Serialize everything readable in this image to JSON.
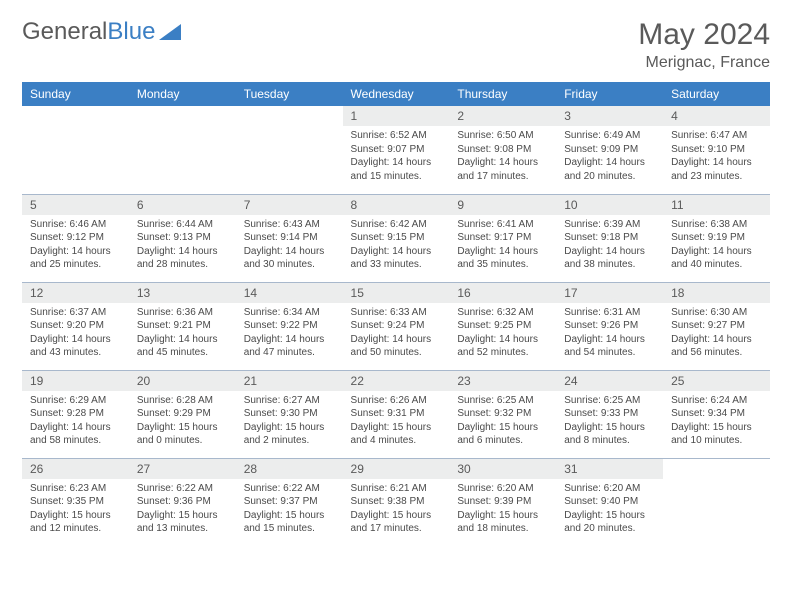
{
  "brand": {
    "part1": "General",
    "part2": "Blue"
  },
  "title": "May 2024",
  "location": "Merignac, France",
  "colors": {
    "header_bg": "#3b7fc4",
    "header_text": "#ffffff",
    "daynum_bg": "#eceded",
    "text": "#5a5a5a",
    "border": "#a8b8cc"
  },
  "weekdays": [
    "Sunday",
    "Monday",
    "Tuesday",
    "Wednesday",
    "Thursday",
    "Friday",
    "Saturday"
  ],
  "layout": {
    "first_weekday_index": 3,
    "days_in_month": 31
  },
  "days": {
    "1": {
      "sunrise": "6:52 AM",
      "sunset": "9:07 PM",
      "daylight": "14 hours and 15 minutes."
    },
    "2": {
      "sunrise": "6:50 AM",
      "sunset": "9:08 PM",
      "daylight": "14 hours and 17 minutes."
    },
    "3": {
      "sunrise": "6:49 AM",
      "sunset": "9:09 PM",
      "daylight": "14 hours and 20 minutes."
    },
    "4": {
      "sunrise": "6:47 AM",
      "sunset": "9:10 PM",
      "daylight": "14 hours and 23 minutes."
    },
    "5": {
      "sunrise": "6:46 AM",
      "sunset": "9:12 PM",
      "daylight": "14 hours and 25 minutes."
    },
    "6": {
      "sunrise": "6:44 AM",
      "sunset": "9:13 PM",
      "daylight": "14 hours and 28 minutes."
    },
    "7": {
      "sunrise": "6:43 AM",
      "sunset": "9:14 PM",
      "daylight": "14 hours and 30 minutes."
    },
    "8": {
      "sunrise": "6:42 AM",
      "sunset": "9:15 PM",
      "daylight": "14 hours and 33 minutes."
    },
    "9": {
      "sunrise": "6:41 AM",
      "sunset": "9:17 PM",
      "daylight": "14 hours and 35 minutes."
    },
    "10": {
      "sunrise": "6:39 AM",
      "sunset": "9:18 PM",
      "daylight": "14 hours and 38 minutes."
    },
    "11": {
      "sunrise": "6:38 AM",
      "sunset": "9:19 PM",
      "daylight": "14 hours and 40 minutes."
    },
    "12": {
      "sunrise": "6:37 AM",
      "sunset": "9:20 PM",
      "daylight": "14 hours and 43 minutes."
    },
    "13": {
      "sunrise": "6:36 AM",
      "sunset": "9:21 PM",
      "daylight": "14 hours and 45 minutes."
    },
    "14": {
      "sunrise": "6:34 AM",
      "sunset": "9:22 PM",
      "daylight": "14 hours and 47 minutes."
    },
    "15": {
      "sunrise": "6:33 AM",
      "sunset": "9:24 PM",
      "daylight": "14 hours and 50 minutes."
    },
    "16": {
      "sunrise": "6:32 AM",
      "sunset": "9:25 PM",
      "daylight": "14 hours and 52 minutes."
    },
    "17": {
      "sunrise": "6:31 AM",
      "sunset": "9:26 PM",
      "daylight": "14 hours and 54 minutes."
    },
    "18": {
      "sunrise": "6:30 AM",
      "sunset": "9:27 PM",
      "daylight": "14 hours and 56 minutes."
    },
    "19": {
      "sunrise": "6:29 AM",
      "sunset": "9:28 PM",
      "daylight": "14 hours and 58 minutes."
    },
    "20": {
      "sunrise": "6:28 AM",
      "sunset": "9:29 PM",
      "daylight": "15 hours and 0 minutes."
    },
    "21": {
      "sunrise": "6:27 AM",
      "sunset": "9:30 PM",
      "daylight": "15 hours and 2 minutes."
    },
    "22": {
      "sunrise": "6:26 AM",
      "sunset": "9:31 PM",
      "daylight": "15 hours and 4 minutes."
    },
    "23": {
      "sunrise": "6:25 AM",
      "sunset": "9:32 PM",
      "daylight": "15 hours and 6 minutes."
    },
    "24": {
      "sunrise": "6:25 AM",
      "sunset": "9:33 PM",
      "daylight": "15 hours and 8 minutes."
    },
    "25": {
      "sunrise": "6:24 AM",
      "sunset": "9:34 PM",
      "daylight": "15 hours and 10 minutes."
    },
    "26": {
      "sunrise": "6:23 AM",
      "sunset": "9:35 PM",
      "daylight": "15 hours and 12 minutes."
    },
    "27": {
      "sunrise": "6:22 AM",
      "sunset": "9:36 PM",
      "daylight": "15 hours and 13 minutes."
    },
    "28": {
      "sunrise": "6:22 AM",
      "sunset": "9:37 PM",
      "daylight": "15 hours and 15 minutes."
    },
    "29": {
      "sunrise": "6:21 AM",
      "sunset": "9:38 PM",
      "daylight": "15 hours and 17 minutes."
    },
    "30": {
      "sunrise": "6:20 AM",
      "sunset": "9:39 PM",
      "daylight": "15 hours and 18 minutes."
    },
    "31": {
      "sunrise": "6:20 AM",
      "sunset": "9:40 PM",
      "daylight": "15 hours and 20 minutes."
    }
  },
  "labels": {
    "sunrise": "Sunrise:",
    "sunset": "Sunset:",
    "daylight": "Daylight:"
  }
}
